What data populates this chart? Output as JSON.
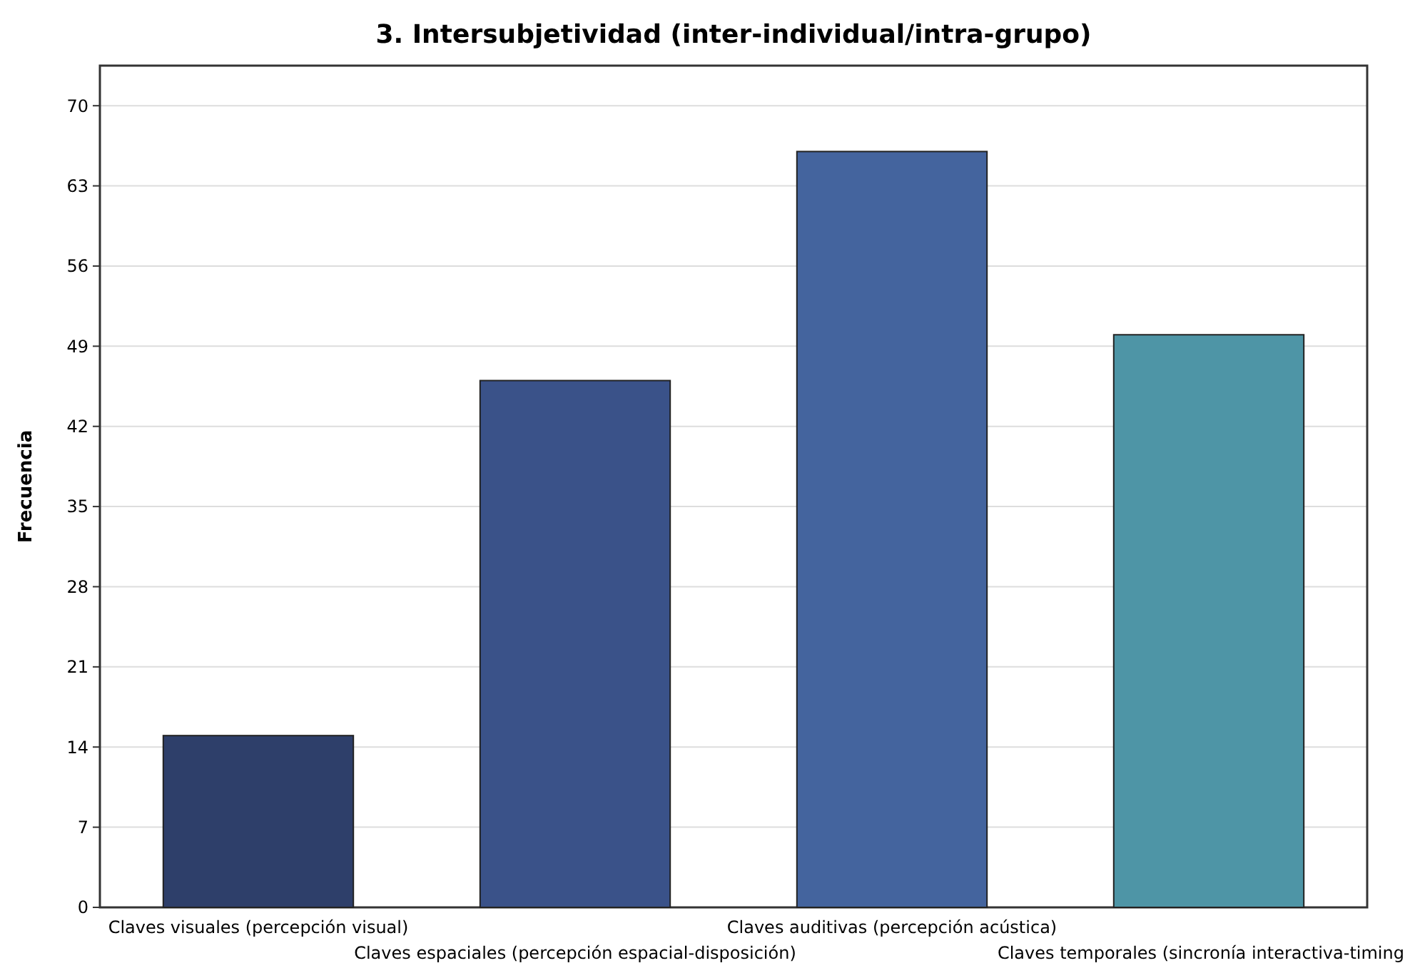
{
  "chart_data": {
    "type": "bar",
    "title": "3. Intersubjetividad (inter-individual/intra-grupo)",
    "ylabel": "Frecuencia",
    "categories": [
      "Claves visuales (percepción visual)",
      "Claves espaciales (percepción espacial-disposición)",
      "Claves auditivas (percepción acústica)",
      "Claves temporales (sincronía interactiva-timing"
    ],
    "values": [
      15,
      46,
      66,
      50
    ],
    "colors": [
      "#2e3f6a",
      "#3a5289",
      "#44649e",
      "#4e95a6"
    ],
    "ylim": [
      0,
      73.5
    ],
    "yticks": [
      0,
      7,
      14,
      21,
      28,
      35,
      42,
      49,
      56,
      63,
      70
    ],
    "grid": "y"
  }
}
